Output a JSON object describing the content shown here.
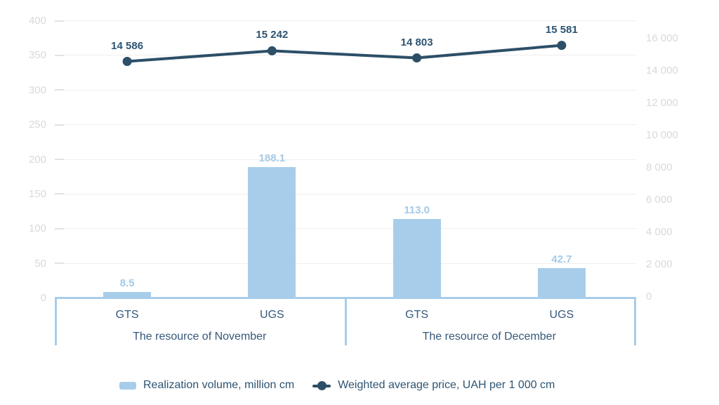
{
  "chart_data": {
    "type": "bar",
    "subtype": "combo-bar-line-dual-axis",
    "categories": [
      "GTS",
      "UGS",
      "GTS",
      "UGS"
    ],
    "groups": [
      {
        "label": "The resource of November",
        "category_indices": [
          0,
          1
        ]
      },
      {
        "label": "The resource of December",
        "category_indices": [
          2,
          3
        ]
      }
    ],
    "series": [
      {
        "name": "Realization volume, million cm",
        "type": "bar",
        "axis": "left",
        "values": [
          8.5,
          188.1,
          113.0,
          42.7
        ],
        "labels": [
          "8.5",
          "188.1",
          "113.0",
          "42.7"
        ]
      },
      {
        "name": "Weighted average price, UAH per 1 000 cm",
        "type": "line",
        "axis": "right",
        "values": [
          14586,
          15242,
          14803,
          15581
        ],
        "labels": [
          "14 586",
          "15 242",
          "14 803",
          "15 581"
        ]
      }
    ],
    "left_axis": {
      "min": 0,
      "max": 400,
      "step": 50,
      "ticks": [
        "0",
        "50",
        "100",
        "150",
        "200",
        "250",
        "300",
        "350",
        "400"
      ]
    },
    "right_axis": {
      "min": 0,
      "max": 16000,
      "step": 2000,
      "ticks": [
        "0",
        "2 000",
        "4 000",
        "6 000",
        "8 000",
        "10 000",
        "12 000",
        "14 000",
        "16 000"
      ]
    },
    "grid": true,
    "legend_position": "bottom"
  },
  "legend": {
    "bar_label": "Realization volume, million cm",
    "line_label": "Weighted average price, UAH per 1 000 cm"
  },
  "colors": {
    "bar": "#a7cdea",
    "bar_value_label": "#a3cae8",
    "line": "#2d4f68",
    "line_value_label": "#2d5472",
    "axis_tick_text": "#d9d9d9",
    "gridline": "#efefef",
    "bracket": "#a7cdea",
    "category_text": "#36587a",
    "legend_text": "#2d5472"
  }
}
